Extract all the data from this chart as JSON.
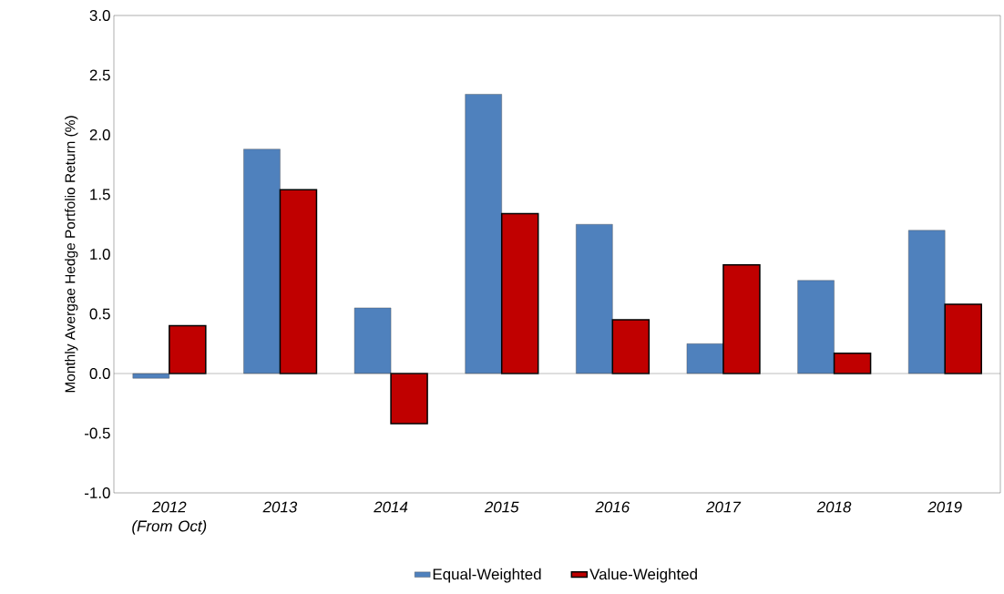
{
  "chart_data": {
    "type": "bar",
    "ylabel": "Monthly Avergae Hedge Portfolio Return (%)",
    "categories": [
      "2012 (From Oct)",
      "2013",
      "2014",
      "2015",
      "2016",
      "2017",
      "2018",
      "2019"
    ],
    "series": [
      {
        "name": "Equal-Weighted",
        "color": "#4f81bd",
        "values": [
          -0.04,
          1.88,
          0.55,
          2.34,
          1.25,
          0.25,
          0.78,
          1.2
        ]
      },
      {
        "name": "Value-Weighted",
        "color": "#c00000",
        "values": [
          0.4,
          1.54,
          -0.42,
          1.34,
          0.45,
          0.91,
          0.17,
          0.58
        ]
      }
    ],
    "ylim": [
      -1.0,
      3.0
    ],
    "yticks": [
      {
        "value": -1.0,
        "label": "-1.0"
      },
      {
        "value": -0.5,
        "label": "-0.5"
      },
      {
        "value": 0.0,
        "label": "0.0"
      },
      {
        "value": 0.5,
        "label": "0.5"
      },
      {
        "value": 1.0,
        "label": "1.0"
      },
      {
        "value": 1.5,
        "label": "1.5"
      },
      {
        "value": 2.0,
        "label": "2.0"
      },
      {
        "value": 2.5,
        "label": "2.5"
      },
      {
        "value": 3.0,
        "label": "3.0"
      }
    ],
    "ref_lines": [
      {
        "axis": "y",
        "value": 0.0,
        "color": "#595959"
      }
    ],
    "legend": "bottom"
  }
}
